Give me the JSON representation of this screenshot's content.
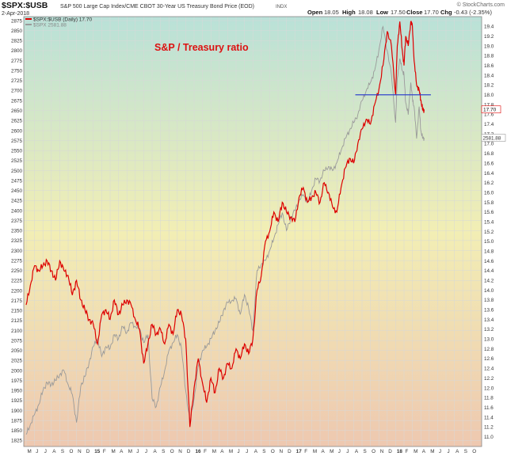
{
  "header": {
    "symbol": "$SPX:$USB",
    "description": "S&P 500 Large Cap Index/CME CBOT 30-Year US Treasury Bond Price (EOD)",
    "index_tag": "INDX",
    "date": "2-Apr-2018",
    "open_label": "Open",
    "open_value": "18.05",
    "high_label": "High",
    "high_value": "18.08",
    "low_label": "Low",
    "low_value": "17.50",
    "close_label": "Close",
    "close_value": "17.70",
    "chg_label": "Chg",
    "chg_value": "-0.43 (-2.35%)",
    "brand": "© StockCharts.com"
  },
  "legend": {
    "ratio": "$SPX:$USB (Daily) 17.70",
    "spx": "$SPX 2581.88"
  },
  "annotation": "S&P / Treasury ratio",
  "colors": {
    "ratio_line": "#dd0000",
    "spx_line": "#9a9a9a",
    "resistance_line": "#3344cc",
    "grid": "#d8d8d8",
    "bg_top": "#b9e1d8",
    "bg_mid": "#f2eeb4",
    "bg_bottom": "#eec8b0"
  },
  "chart_data": {
    "type": "line",
    "x_range": [
      "2014-05",
      "2018-10"
    ],
    "left_axis_ticks": [
      "2875",
      "2850",
      "2825",
      "2800",
      "2775",
      "2750",
      "2725",
      "2700",
      "2675",
      "2650",
      "2625",
      "2600",
      "2575",
      "2550",
      "2525",
      "2500",
      "2475",
      "2450",
      "2425",
      "2400",
      "2375",
      "2350",
      "2325",
      "2300",
      "2275",
      "2250",
      "2225",
      "2200",
      "2175",
      "2150",
      "2125",
      "2100",
      "2075",
      "2050",
      "2025",
      "2000",
      "1975",
      "1950",
      "1925",
      "1900",
      "1875",
      "1850",
      "1825"
    ],
    "right_axis_ticks": [
      "19.4",
      "19.2",
      "19.0",
      "18.8",
      "18.6",
      "18.4",
      "18.2",
      "18.0",
      "17.8",
      "17.6",
      "17.4",
      "17.2",
      "17.0",
      "16.8",
      "16.6",
      "16.4",
      "16.2",
      "16.0",
      "15.8",
      "15.6",
      "15.4",
      "15.2",
      "15.0",
      "14.8",
      "14.6",
      "14.4",
      "14.2",
      "14.0",
      "13.8",
      "13.6",
      "13.4",
      "13.2",
      "13.0",
      "12.8",
      "12.6",
      "12.4",
      "12.2",
      "12.0",
      "11.8",
      "11.6",
      "11.4",
      "11.2",
      "11.0"
    ],
    "left_ylim": [
      1810,
      2885
    ],
    "right_ylim": [
      10.8,
      19.6
    ],
    "x_month_labels": [
      "M",
      "J",
      "J",
      "A",
      "S",
      "O",
      "N",
      "D",
      "15",
      "F",
      "M",
      "A",
      "M",
      "J",
      "J",
      "A",
      "S",
      "O",
      "N",
      "D",
      "16",
      "F",
      "M",
      "A",
      "M",
      "J",
      "J",
      "A",
      "S",
      "O",
      "N",
      "D",
      "17",
      "F",
      "M",
      "A",
      "M",
      "J",
      "J",
      "A",
      "S",
      "O",
      "N",
      "D",
      "18",
      "F",
      "M",
      "A",
      "M",
      "J",
      "J",
      "A",
      "S",
      "O"
    ],
    "x_month_bold": [
      "15",
      "16",
      "17",
      "18"
    ],
    "price_tags": {
      "ratio": "17.70",
      "spx": "2581.88"
    },
    "series": [
      {
        "name": "$SPX:$USB (Daily) 17.70",
        "axis": "right",
        "x": [
          0,
          0.5,
          1,
          1.5,
          2,
          2.5,
          3,
          3.5,
          4,
          4.5,
          5,
          5.5,
          6,
          6.5,
          7,
          7.5,
          8,
          8.5,
          9,
          9.5,
          10,
          10.5,
          11,
          11.5,
          12,
          12.5,
          13,
          13.5,
          14,
          14.5,
          15,
          15.5,
          16,
          16.5,
          17,
          17.5,
          18,
          18.5,
          19,
          19.5,
          20,
          20.5,
          21,
          21.5,
          22,
          22.5,
          23,
          23.5,
          24,
          24.5,
          25,
          25.5,
          26,
          26.5,
          27,
          27.5,
          28,
          28.5,
          29,
          29.5,
          30,
          30.5,
          31,
          31.5,
          32,
          32.5,
          33,
          33.5,
          34,
          34.5,
          35,
          35.5,
          36,
          36.5,
          37,
          37.5,
          38,
          38.5,
          39,
          39.5,
          40,
          40.5,
          41,
          41.5,
          42,
          42.5,
          43,
          43.5,
          44,
          44.2,
          44.5,
          44.8,
          45,
          45.2,
          45.5,
          45.8,
          46,
          46.2,
          46.5,
          46.8,
          47,
          47.2,
          47.4
        ],
        "values": [
          13.7,
          14.1,
          14.5,
          14.4,
          14.5,
          14.6,
          14.4,
          14.2,
          14.6,
          14.4,
          14.3,
          13.9,
          14.2,
          13.8,
          13.6,
          13.4,
          13.3,
          12.9,
          13.5,
          13.6,
          13.4,
          13.8,
          13.5,
          13.7,
          13.8,
          13.7,
          13.4,
          13.2,
          12.5,
          12.9,
          13.3,
          13.1,
          13.2,
          12.9,
          13.3,
          13.1,
          13.6,
          13.5,
          13.0,
          11.2,
          12.0,
          12.6,
          12.1,
          11.7,
          12.2,
          11.9,
          12.4,
          12.2,
          12.5,
          12.4,
          12.8,
          12.6,
          12.9,
          12.7,
          13.0,
          14.0,
          14.3,
          15.0,
          15.2,
          15.6,
          15.4,
          15.8,
          15.6,
          15.5,
          15.4,
          15.9,
          16.1,
          15.8,
          15.9,
          16.0,
          15.8,
          16.2,
          16.0,
          15.7,
          15.6,
          16.1,
          16.5,
          16.7,
          16.6,
          17.0,
          17.3,
          17.5,
          17.4,
          17.8,
          18.1,
          18.6,
          19.3,
          19.0,
          18.0,
          19.0,
          19.5,
          18.9,
          18.6,
          19.2,
          19.0,
          19.5,
          19.4,
          18.7,
          18.2,
          18.1,
          17.9,
          17.7,
          17.7
        ]
      },
      {
        "name": "$SPX 2581.88",
        "axis": "left",
        "x": [
          0,
          0.5,
          1,
          1.5,
          2,
          2.5,
          3,
          3.5,
          4,
          4.5,
          5,
          5.5,
          6,
          6.5,
          7,
          7.5,
          8,
          8.5,
          9,
          9.5,
          10,
          10.5,
          11,
          11.5,
          12,
          12.5,
          13,
          13.5,
          14,
          14.5,
          15,
          15.5,
          16,
          16.5,
          17,
          17.5,
          18,
          18.5,
          19,
          19.5,
          20,
          20.5,
          21,
          21.5,
          22,
          22.5,
          23,
          23.5,
          24,
          24.5,
          25,
          25.5,
          26,
          26.5,
          27,
          27.5,
          28,
          28.5,
          29,
          29.5,
          30,
          30.5,
          31,
          31.5,
          32,
          32.5,
          33,
          33.5,
          34,
          34.5,
          35,
          35.5,
          36,
          36.5,
          37,
          37.5,
          38,
          38.5,
          39,
          39.5,
          40,
          40.5,
          41,
          41.5,
          42,
          42.5,
          43,
          43.5,
          44,
          44.2,
          44.5,
          44.8,
          45,
          45.2,
          45.5,
          45.8,
          46,
          46.2,
          46.5,
          46.8,
          47,
          47.2,
          47.4
        ],
        "values": [
          1840,
          1865,
          1890,
          1915,
          1950,
          1970,
          1965,
          1975,
          1990,
          2000,
          1965,
          1940,
          1870,
          1960,
          1985,
          2020,
          2060,
          2080,
          2035,
          2060,
          2055,
          2090,
          2080,
          2110,
          2095,
          2120,
          2110,
          2105,
          2070,
          2090,
          1930,
          1910,
          1960,
          2000,
          2050,
          2070,
          2090,
          2055,
          1950,
          1870,
          1930,
          2010,
          2050,
          2060,
          2080,
          2100,
          2120,
          2150,
          2170,
          2175,
          2180,
          2140,
          2190,
          2155,
          2100,
          2250,
          2265,
          2275,
          2300,
          2330,
          2365,
          2395,
          2350,
          2380,
          2400,
          2425,
          2440,
          2420,
          2450,
          2480,
          2475,
          2500,
          2510,
          2500,
          2520,
          2550,
          2580,
          2600,
          2620,
          2640,
          2675,
          2700,
          2720,
          2750,
          2800,
          2860,
          2800,
          2740,
          2620,
          2730,
          2780,
          2750,
          2740,
          2670,
          2640,
          2720,
          2680,
          2660,
          2580,
          2660,
          2600,
          2582,
          2582
        ]
      }
    ],
    "resistance_line": {
      "axis": "right",
      "value": 18.0,
      "x_start": 39.2,
      "x_end": 48.2
    }
  }
}
